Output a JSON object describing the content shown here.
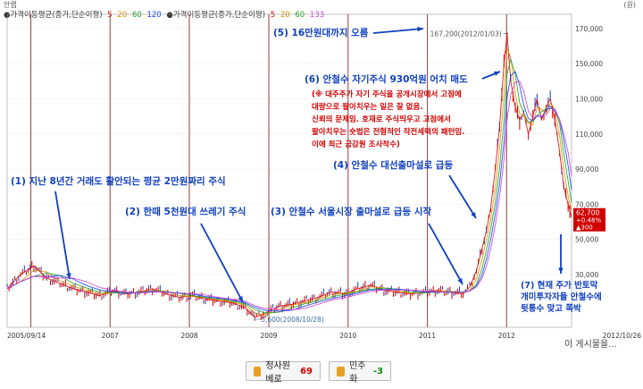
{
  "header": {
    "title": "안랩",
    "unit": "(원)",
    "legend_1": "●가격이동평균(종가,단순이평)",
    "legend_1_periods": [
      "5",
      "20",
      "60",
      "120"
    ],
    "legend_2": "●가격이동평균(종가,단순이평)",
    "legend_2_periods": [
      "5",
      "20",
      "60",
      "133"
    ]
  },
  "colors": {
    "up": "#d00000",
    "down": "#1040c0",
    "annotation_blue": "#1040c0",
    "annotation_red": "#d00000",
    "ma5": "#e00000",
    "ma20": "#d89000",
    "ma60": "#20a020",
    "ma120": "#1040ff",
    "ma133": "#d040d0",
    "gridline": "#9b5050"
  },
  "chart_data": {
    "type": "line",
    "title": "",
    "xlabel": "",
    "ylabel": "",
    "y_unit": "원",
    "ylim": [
      0,
      175000
    ],
    "yticks": [
      30000,
      50000,
      70000,
      90000,
      110000,
      130000,
      150000,
      170000
    ],
    "ytick_labels": [
      "30,000",
      "50,000",
      "70,000",
      "90,000",
      "110,000",
      "130,000",
      "150,000",
      "170,000"
    ],
    "xlim": [
      "2005-09-14",
      "2012-10-26"
    ],
    "x_labels": [
      {
        "date": "2005-09-14",
        "label": "2005/09/14"
      },
      {
        "date": "2007-01-01",
        "label": "2007"
      },
      {
        "date": "2008-01-01",
        "label": "2008"
      },
      {
        "date": "2009-01-01",
        "label": "2009"
      },
      {
        "date": "2010-01-01",
        "label": "2010"
      },
      {
        "date": "2011-01-01",
        "label": "2011"
      },
      {
        "date": "2012-01-01",
        "label": "2012"
      },
      {
        "date": "2012-10-26",
        "label": "2012/10/26"
      }
    ],
    "vertical_gridlines": [
      "2006-01-01",
      "2007-01-01",
      "2008-01-01",
      "2009-01-01",
      "2010-01-01",
      "2011-01-01",
      "2012-01-01"
    ],
    "series": [
      {
        "name": "",
        "x": [
          "2005-09-14",
          "2005-11-15",
          "2006-01-15",
          "2006-03-15",
          "2006-05-15",
          "2006-07-15",
          "2006-09-15",
          "2006-11-15",
          "2007-01-15",
          "2007-03-15",
          "2007-05-15",
          "2007-07-15",
          "2007-09-15",
          "2007-11-15",
          "2008-01-15",
          "2008-03-15",
          "2008-05-15",
          "2008-07-15",
          "2008-09-15",
          "2008-10-28",
          "2008-12-15",
          "2009-02-15",
          "2009-04-15",
          "2009-06-15",
          "2009-08-15",
          "2009-10-15",
          "2009-12-15",
          "2010-02-15",
          "2010-04-15",
          "2010-06-15",
          "2010-08-15",
          "2010-10-15",
          "2010-12-15",
          "2011-02-15",
          "2011-04-15",
          "2011-06-15",
          "2011-07-15",
          "2011-08-15",
          "2011-09-10",
          "2011-09-30",
          "2011-10-20",
          "2011-11-10",
          "2011-11-30",
          "2011-12-20",
          "2012-01-03",
          "2012-01-20",
          "2012-02-10",
          "2012-03-01",
          "2012-03-20",
          "2012-04-10",
          "2012-05-01",
          "2012-05-20",
          "2012-06-10",
          "2012-07-01",
          "2012-07-20",
          "2012-08-10",
          "2012-09-01",
          "2012-09-20",
          "2012-10-10",
          "2012-10-26"
        ],
        "values": [
          22000,
          30000,
          35000,
          28000,
          25000,
          22000,
          20000,
          18000,
          21000,
          19000,
          20000,
          22000,
          19000,
          17000,
          18000,
          16000,
          15000,
          14000,
          11000,
          5600,
          8000,
          12000,
          13000,
          15000,
          17000,
          20000,
          19000,
          22000,
          24000,
          21000,
          20000,
          19000,
          20000,
          21000,
          20000,
          19000,
          23000,
          32000,
          45000,
          55000,
          68000,
          90000,
          115000,
          150000,
          167200,
          140000,
          125000,
          118000,
          122000,
          110000,
          120000,
          130000,
          118000,
          125000,
          130000,
          118000,
          100000,
          80000,
          70000,
          62700
        ]
      }
    ],
    "moving_averages": [
      {
        "name": "5",
        "period": 5
      },
      {
        "name": "20",
        "period": 20
      },
      {
        "name": "60",
        "period": 60
      },
      {
        "name": "120",
        "period": 120
      },
      {
        "name": "133",
        "period": 133
      }
    ],
    "markers": [
      {
        "date": "2012-01-03",
        "value": 167200,
        "label": "167,200(2012/01/03)"
      },
      {
        "date": "2008-10-28",
        "value": 5600,
        "label": "5,600(2008/10/28)"
      }
    ],
    "current_price_box": {
      "value": 62700,
      "label": "62,700",
      "change_pct": "+0.48%",
      "change_abs": "▲300"
    },
    "annotations": [
      {
        "id": "a1",
        "color": "blue",
        "text": "(1) 지난 8년간 거래도 활안되는 평균 2만원짜리 주식"
      },
      {
        "id": "a2",
        "color": "blue",
        "text": "(2) 한때 5천원대 쓰레기 주식"
      },
      {
        "id": "a3",
        "color": "blue",
        "text": "(3) 안철수 서울시장 출마설로 급등 시작"
      },
      {
        "id": "a4",
        "color": "blue",
        "text": "(4) 안철수 대선출마설로 급등"
      },
      {
        "id": "a5",
        "color": "blue",
        "text": "(5) 16만원대까지 오름"
      },
      {
        "id": "a6",
        "color": "blue",
        "text": "(6) 안철수 자기주식 930억원 어치 매도"
      },
      {
        "id": "a6r",
        "color": "red",
        "lines": [
          "(※ 대주주가 자기 주식을 공개시장에서 고점에",
          "대량으로 팔아치우는 일은 잘 없음.",
          "신뢰의 문제임. 호재로 주식띄우고 고점에서",
          "팔아치우는 숏법은 전형적인 작전세력의 패턴임.",
          "이에 최근 금감원 조사착수)"
        ]
      },
      {
        "id": "a7",
        "color": "blue",
        "lines": [
          "(7) 현재 주가 반토막",
          "개미투자자들 안철수에",
          "뒷통수 맞고 쪽박"
        ]
      }
    ]
  },
  "footer": {
    "more_text": "이 게시물을...",
    "upvote_label": "정사원베로",
    "upvote_count": "69",
    "downvote_label": "민주화",
    "downvote_count": "-3"
  }
}
